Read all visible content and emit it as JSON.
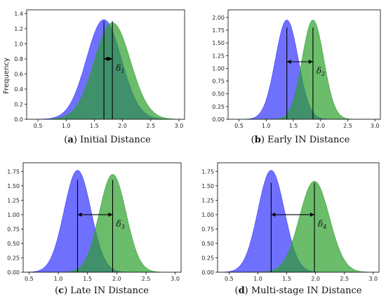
{
  "chart_data": [
    {
      "type": "area",
      "ylabel": "Frequency",
      "caption_letter": "a",
      "caption_text": "Initial Distance",
      "annotation": "δ",
      "annotation_sub": "1",
      "xlim": [
        0.3,
        3.1
      ],
      "ylim": [
        0,
        1.45
      ],
      "xticks": [
        0.5,
        1.0,
        1.5,
        2.0,
        2.5,
        3.0
      ],
      "yticks": [
        0.0,
        0.2,
        0.4,
        0.6,
        0.8,
        1.0,
        1.2,
        1.4
      ],
      "series": [
        {
          "color": "#3333ff",
          "mean": 1.67,
          "sd": 0.31,
          "peak": 1.32
        },
        {
          "color": "#2ca02c",
          "mean": 1.82,
          "sd": 0.32,
          "peak": 1.28
        }
      ],
      "marker_lines": [
        1.67,
        1.82
      ],
      "marker_heights": [
        1.3,
        1.3
      ],
      "arrow_y": 0.8
    },
    {
      "type": "area",
      "ylabel": "",
      "caption_letter": "b",
      "caption_text": "Early IN Distance",
      "annotation": "δ",
      "annotation_sub": "2",
      "xlim": [
        0.3,
        3.1
      ],
      "ylim": [
        0,
        2.15
      ],
      "xticks": [
        0.5,
        1.0,
        1.5,
        2.0,
        2.5,
        3.0
      ],
      "yticks": [
        0.0,
        0.25,
        0.5,
        0.75,
        1.0,
        1.25,
        1.5,
        1.75,
        2.0
      ],
      "series": [
        {
          "color": "#3333ff",
          "mean": 1.38,
          "sd": 0.21,
          "peak": 1.95
        },
        {
          "color": "#2ca02c",
          "mean": 1.86,
          "sd": 0.2,
          "peak": 1.95
        }
      ],
      "marker_lines": [
        1.38,
        1.86
      ],
      "marker_heights": [
        1.8,
        1.8
      ],
      "arrow_y": 1.13
    },
    {
      "type": "area",
      "ylabel": "",
      "caption_letter": "c",
      "caption_text": "Late IN Distance",
      "annotation": "δ",
      "annotation_sub": "3",
      "xlim": [
        0.4,
        3.1
      ],
      "ylim": [
        0,
        1.9
      ],
      "xticks": [
        0.5,
        1.0,
        1.5,
        2.0,
        2.5,
        3.0
      ],
      "yticks": [
        0.0,
        0.25,
        0.5,
        0.75,
        1.0,
        1.25,
        1.5,
        1.75
      ],
      "series": [
        {
          "color": "#3333ff",
          "mean": 1.33,
          "sd": 0.23,
          "peak": 1.77
        },
        {
          "color": "#2ca02c",
          "mean": 1.93,
          "sd": 0.23,
          "peak": 1.7
        }
      ],
      "marker_lines": [
        1.33,
        1.93
      ],
      "marker_heights": [
        1.6,
        1.6
      ],
      "arrow_y": 1.0
    },
    {
      "type": "area",
      "ylabel": "",
      "caption_letter": "d",
      "caption_text": "Multi-stage IN Distance",
      "annotation": "δ",
      "annotation_sub": "4",
      "xlim": [
        0.3,
        3.1
      ],
      "ylim": [
        0,
        1.9
      ],
      "xticks": [
        0.5,
        1.0,
        1.5,
        2.0,
        2.5,
        3.0
      ],
      "yticks": [
        0.0,
        0.25,
        0.5,
        0.75,
        1.0,
        1.25,
        1.5,
        1.75
      ],
      "series": [
        {
          "color": "#3333ff",
          "mean": 1.23,
          "sd": 0.23,
          "peak": 1.77
        },
        {
          "color": "#2ca02c",
          "mean": 1.98,
          "sd": 0.26,
          "peak": 1.58
        }
      ],
      "marker_lines": [
        1.23,
        1.98
      ],
      "marker_heights": [
        1.55,
        1.55
      ],
      "arrow_y": 1.0
    }
  ]
}
